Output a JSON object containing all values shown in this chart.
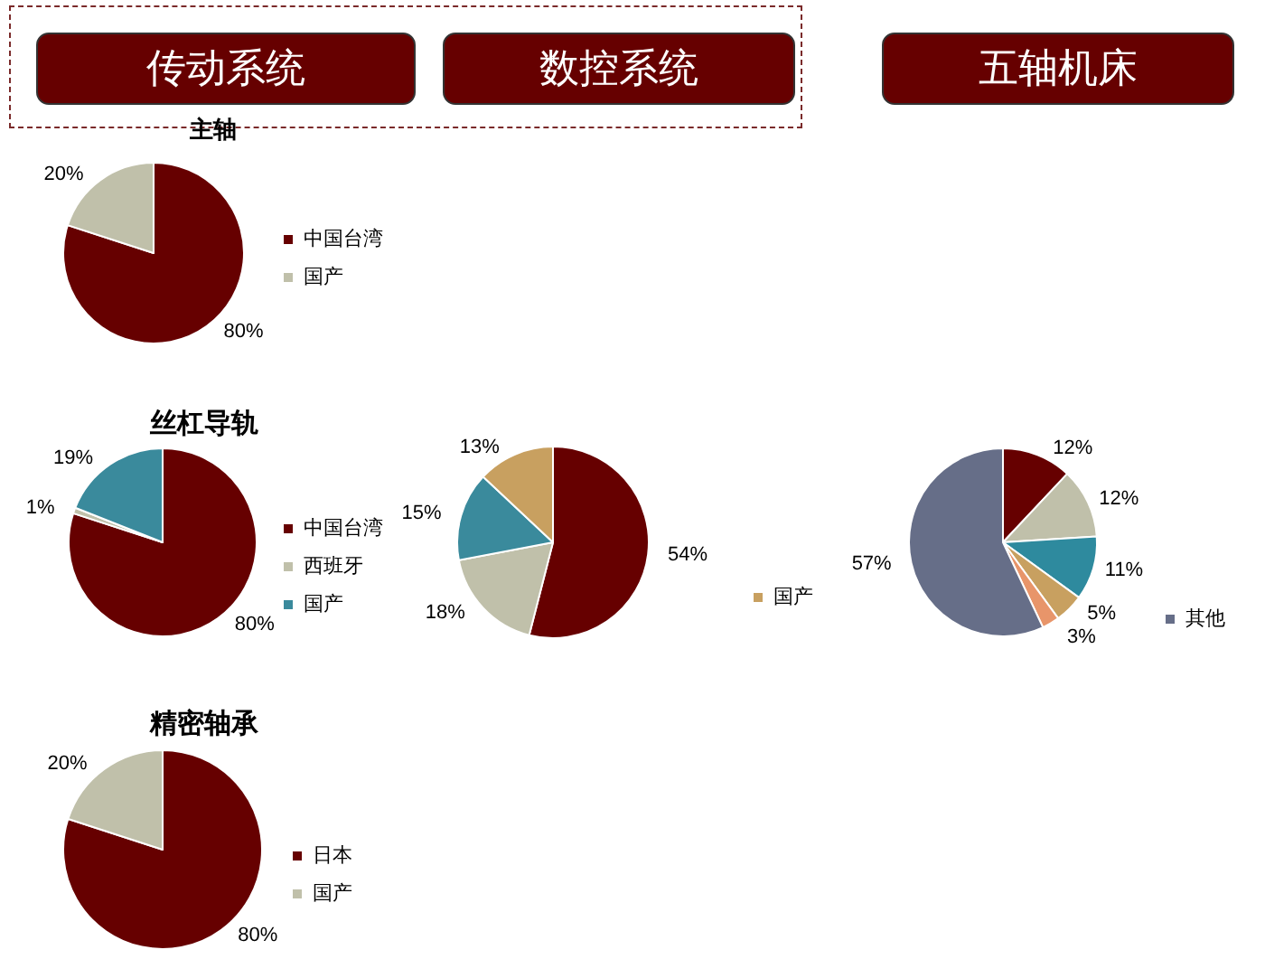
{
  "chart_data": [
    {
      "type": "pie",
      "title": "主轴",
      "annotations": [
        "传动系统"
      ],
      "categories": [
        "中国台湾",
        "国产"
      ],
      "values": [
        80,
        20
      ],
      "value_labels": [
        "80%",
        "20%"
      ],
      "colors": [
        "#660000",
        "#c0c0aa"
      ],
      "legend": "right"
    },
    {
      "type": "pie",
      "title": "丝杠导轨",
      "categories": [
        "中国台湾",
        "西班牙",
        "国产"
      ],
      "values": [
        80,
        1,
        19
      ],
      "value_labels": [
        "80%",
        "1%",
        "19%"
      ],
      "colors": [
        "#660000",
        "#c0c0aa",
        "#3a8a9c"
      ],
      "legend": "right"
    },
    {
      "type": "pie",
      "title": "精密轴承",
      "categories": [
        "日本",
        "国产"
      ],
      "values": [
        80,
        20
      ],
      "value_labels": [
        "80%",
        "20%"
      ],
      "colors": [
        "#660000",
        "#c0c0aa"
      ],
      "legend": "right"
    },
    {
      "type": "pie",
      "annotations": [
        "数控系统"
      ],
      "categories": [
        null,
        null,
        null,
        "国产"
      ],
      "values": [
        54,
        18,
        15,
        13
      ],
      "value_labels": [
        "54%",
        "18%",
        "15%",
        "13%"
      ],
      "colors": [
        "#660000",
        "#c0c0aa",
        "#3a8a9c",
        "#c8a060"
      ],
      "legend": "right"
    },
    {
      "type": "pie",
      "annotations": [
        "五轴机床"
      ],
      "categories": [
        null,
        null,
        null,
        null,
        null,
        "其他"
      ],
      "values": [
        12,
        12,
        11,
        5,
        3,
        57
      ],
      "value_labels": [
        "12%",
        "12%",
        "11%",
        "5%",
        "3%",
        "57%"
      ],
      "colors": [
        "#660000",
        "#c0c0aa",
        "#2e8a9e",
        "#c8a060",
        "#e8956a",
        "#666e88"
      ],
      "legend": "right"
    }
  ]
}
